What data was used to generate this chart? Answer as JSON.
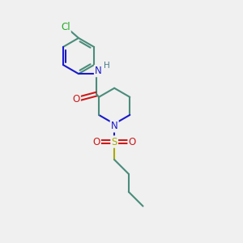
{
  "bg_color": "#f0f0f0",
  "gc": "#4a8c7a",
  "nc": "#1a1acc",
  "oc": "#cc1a1a",
  "sc": "#aaaa00",
  "clc": "#22aa22",
  "hc": "#4a7a8a",
  "lw": 1.5,
  "atoms": {
    "Cl": "#22aa22",
    "N": "#1a1acc",
    "O": "#cc1a1a",
    "S": "#aaaa00",
    "H": "#4a7a8a"
  }
}
